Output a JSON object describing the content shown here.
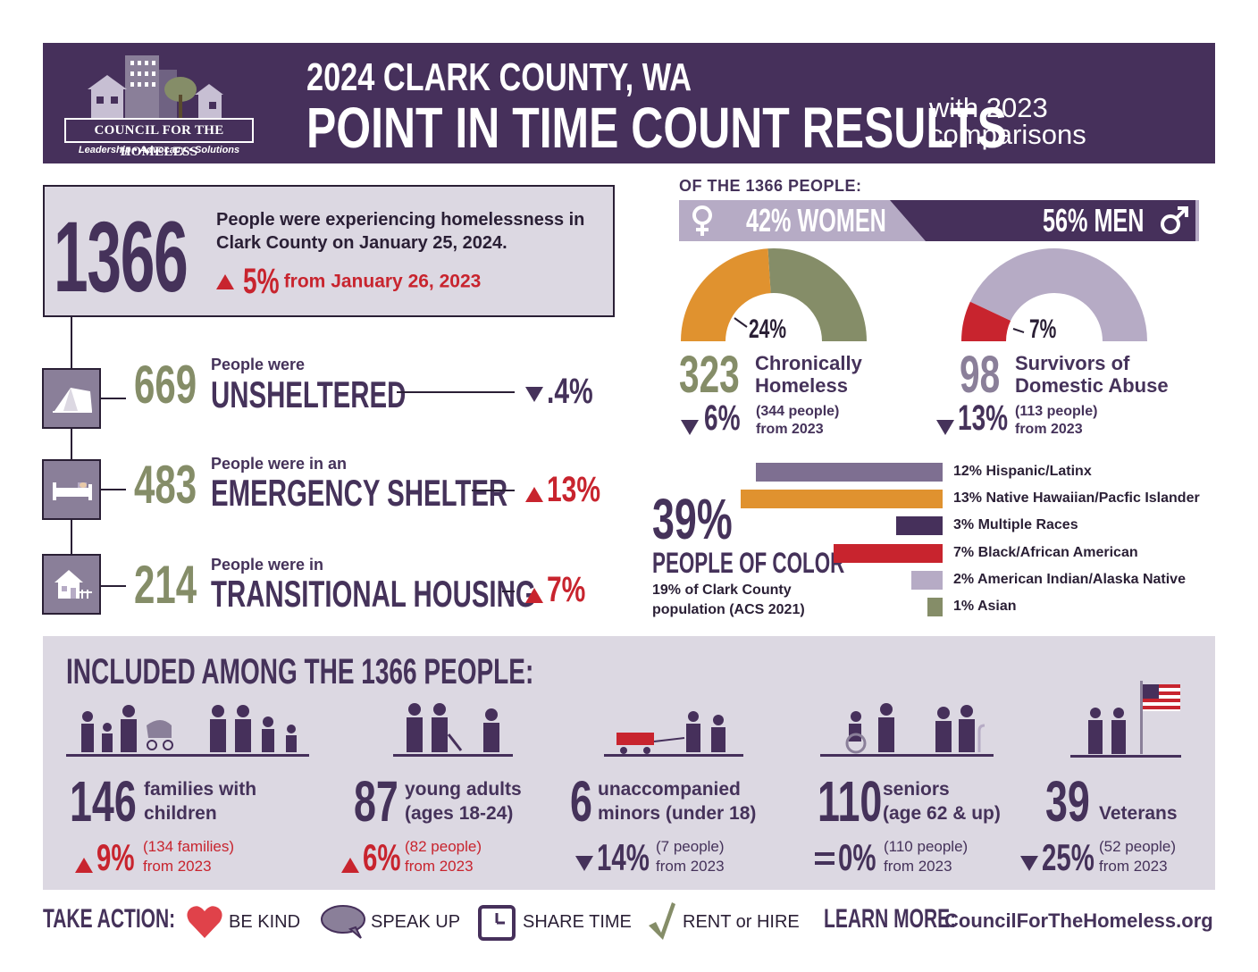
{
  "header": {
    "logo_name": "COUNCIL FOR THE HOMELESS",
    "logo_tagline": "Leadership • Advocacy • Solutions",
    "title_line1": "2024 CLARK COUNTY, WA",
    "title_line2": "POINT IN TIME COUNT RESULTS",
    "subtitle": "with 2023 comparisons"
  },
  "total": {
    "count": "1366",
    "text": "People were experiencing homelessness in Clark County on January 25, 2024.",
    "change_pct": "5%",
    "change_text": "from January 26, 2023",
    "direction": "up"
  },
  "housing": [
    {
      "count": "669",
      "intro": "People were",
      "category": "UNSHELTERED",
      "change": ".4%",
      "direction": "down",
      "icon": "tent-icon"
    },
    {
      "count": "483",
      "intro": "People were in an",
      "category": "EMERGENCY SHELTER",
      "change": "13%",
      "direction": "up",
      "icon": "bed-icon"
    },
    {
      "count": "214",
      "intro": "People were in",
      "category": "TRANSITIONAL HOUSING",
      "change": "7%",
      "direction": "up",
      "icon": "house-icon"
    }
  ],
  "demographics": {
    "of_label": "OF THE 1366 PEOPLE:",
    "women_label": "42% WOMEN",
    "men_label": "56% MEN",
    "women_pct": 42,
    "men_pct": 56
  },
  "chronic": {
    "count": "323",
    "label_line1": "Chronically",
    "label_line2": "Homeless",
    "pct": "24%",
    "pct_value": 24,
    "change": "6%",
    "direction": "down",
    "prev_line1": "(344 people)",
    "prev_line2": "from 2023",
    "colors": {
      "highlight": "#e0922f",
      "rest": "#858d68"
    }
  },
  "domestic": {
    "count": "98",
    "label_line1": "Survivors of",
    "label_line2": "Domestic Abuse",
    "pct": "7%",
    "pct_value": 7,
    "change": "13%",
    "direction": "down",
    "prev_line1": "(113 people)",
    "prev_line2": "from 2023",
    "colors": {
      "highlight": "#c8242e",
      "rest": "#b6abc5"
    }
  },
  "race": {
    "poc_pct": "39%",
    "poc_label": "PEOPLE OF COLOR",
    "poc_sub_line1": "19% of Clark County",
    "poc_sub_line2": "population (ACS 2021)",
    "items": [
      {
        "label": "12% Hispanic/Latinx",
        "value": 12,
        "color": "#7e6f91"
      },
      {
        "label": "13% Native Hawaiian/Pacfic Islander",
        "value": 13,
        "color": "#e0922f"
      },
      {
        "label": "3% Multiple Races",
        "value": 3,
        "color": "#46305b"
      },
      {
        "label": "7% Black/African American",
        "value": 7,
        "color": "#c8242e"
      },
      {
        "label": "2% American Indian/Alaska Native",
        "value": 2,
        "color": "#b6abc5"
      },
      {
        "label": "1% Asian",
        "value": 1,
        "color": "#858d68"
      }
    ]
  },
  "included": {
    "title": "INCLUDED AMONG THE 1366 PEOPLE:",
    "groups": [
      {
        "count": "146",
        "label_line1": "families with",
        "label_line2": "children",
        "change": "9%",
        "direction": "up",
        "prev_line1": "(134 families)",
        "prev_line2": "from 2023"
      },
      {
        "count": "87",
        "label_line1": "young adults",
        "label_line2": "(ages 18-24)",
        "change": "6%",
        "direction": "up",
        "prev_line1": "(82 people)",
        "prev_line2": "from 2023"
      },
      {
        "count": "6",
        "label_line1": "unaccompanied",
        "label_line2": "minors (under 18)",
        "change": "14%",
        "direction": "down",
        "prev_line1": "(7 people)",
        "prev_line2": "from 2023"
      },
      {
        "count": "110",
        "label_line1": "seniors",
        "label_line2": "(age 62 & up)",
        "change": "0%",
        "direction": "equal",
        "prev_line1": "(110 people)",
        "prev_line2": "from 2023"
      },
      {
        "count": "39",
        "label_line1": "",
        "label_line2": "Veterans",
        "change": "25%",
        "direction": "down",
        "prev_line1": "(52 people)",
        "prev_line2": "from 2023"
      }
    ]
  },
  "footer": {
    "take_action": "TAKE ACTION:",
    "actions": [
      {
        "label": "BE KIND",
        "icon": "heart-icon"
      },
      {
        "label": "SPEAK UP",
        "icon": "speech-bubble-icon"
      },
      {
        "label": "SHARE TIME",
        "icon": "clock-icon"
      },
      {
        "label": "RENT or HIRE",
        "icon": "checkmark-icon"
      }
    ],
    "learn_more": "LEARN MORE:",
    "website": "CouncilForTheHomeless.org"
  }
}
